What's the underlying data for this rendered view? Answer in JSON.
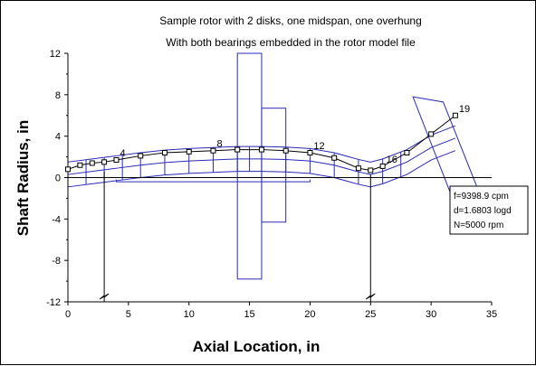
{
  "chart_data": {
    "type": "line",
    "title": "Sample rotor with 2 disks, one midspan, one overhung",
    "subtitle": "With both bearings embedded in the rotor model file",
    "xlabel": "Axial Location, in",
    "ylabel": "Shaft Radius, in",
    "xlim": [
      0,
      35
    ],
    "ylim": [
      -12,
      12
    ],
    "x_ticks": [
      0,
      5,
      10,
      15,
      20,
      25,
      30,
      35
    ],
    "y_ticks": [
      -12,
      -8,
      -4,
      0,
      4,
      8,
      12
    ],
    "x_tick_labels": [
      "0",
      "5",
      "10",
      "15",
      "20",
      "25",
      "30",
      "35"
    ],
    "y_tick_labels": [
      "-12",
      "-8",
      "-4",
      "0",
      "4",
      "8",
      "12"
    ],
    "grid": false,
    "series": [
      {
        "x": [
          0,
          1,
          2,
          3,
          4,
          6,
          8,
          10,
          12,
          14,
          16,
          18,
          20,
          22,
          24,
          25,
          26,
          28,
          30,
          32
        ],
        "y": [
          0.8,
          1.2,
          1.4,
          1.5,
          1.7,
          2.1,
          2.4,
          2.5,
          2.6,
          2.7,
          2.7,
          2.6,
          2.4,
          1.9,
          0.9,
          0.7,
          1.1,
          2.4,
          4.2,
          6.0
        ],
        "color": "#000000"
      }
    ],
    "node_labels": [
      {
        "x": 4,
        "y": 1.7,
        "text": "4"
      },
      {
        "x": 12,
        "y": 2.6,
        "text": "8"
      },
      {
        "x": 20,
        "y": 2.4,
        "text": "12"
      },
      {
        "x": 26,
        "y": 1.1,
        "text": "16"
      },
      {
        "x": 32,
        "y": 6.0,
        "text": "19"
      }
    ],
    "shaft_centerline": {
      "x": [
        0,
        2,
        4,
        6,
        8,
        10,
        12,
        14,
        16,
        18,
        20,
        22,
        24,
        25,
        26,
        28,
        30,
        32
      ],
      "y": [
        0.3,
        0.6,
        0.9,
        1.2,
        1.45,
        1.6,
        1.7,
        1.8,
        1.8,
        1.75,
        1.6,
        1.2,
        0.55,
        0.3,
        0.6,
        1.5,
        2.9,
        3.8
      ]
    },
    "shaft_outer_offset": 1.2,
    "shaft_stations_x": [
      1.5,
      3,
      4.5,
      6,
      8,
      10,
      12,
      14,
      15,
      16,
      18,
      20,
      22,
      24,
      26,
      27.5
    ],
    "midspan_disk": {
      "x0": 14,
      "x1": 16,
      "y0": -9.8,
      "y1": 12
    },
    "disk_hub": {
      "x0": 16,
      "x1": 18,
      "y0": -4.3,
      "y1": 6.7
    },
    "lower_step": {
      "x0": 10,
      "x1": 20,
      "y0": -0.4,
      "y1": 0
    },
    "overhung_disk_corners": [
      [
        28.5,
        7.8
      ],
      [
        31.0,
        7.3
      ],
      [
        34.5,
        -3.0
      ],
      [
        32.2,
        -3.3
      ]
    ],
    "bearing_supports": [
      {
        "x": 3,
        "y_top": 0.6,
        "y_bottom": -12
      },
      {
        "x": 25,
        "y_top": 0.3,
        "y_bottom": -12
      }
    ],
    "info_box": {
      "lines": [
        "f=9398.9 cpm",
        "d=1.6803 logd",
        "N=5000 rpm"
      ]
    }
  }
}
